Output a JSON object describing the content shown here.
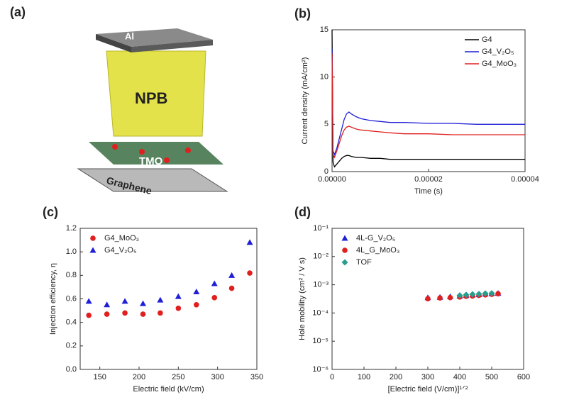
{
  "schematic": {
    "label": "(a)",
    "layers": [
      "Al",
      "NPB",
      "TMO",
      "Graphene"
    ]
  },
  "chart_data": [
    {
      "type": "line",
      "panel_label": "(b)",
      "x_label": "Time (s)",
      "y_label": "Current density (mA/cm²)",
      "x": [
        0,
        2e-07,
        5e-07,
        1e-06,
        1.5e-06,
        2e-06,
        2.5e-06,
        3e-06,
        3.5e-06,
        4e-06,
        5e-06,
        6e-06,
        8e-06,
        1e-05,
        1.2e-05,
        1.5e-05,
        2e-05,
        2.5e-05,
        3e-05,
        3.5e-05,
        4e-05
      ],
      "series": [
        {
          "name": "G4",
          "color": "#000000",
          "values": [
            15,
            1.0,
            0.5,
            0.8,
            1.1,
            1.4,
            1.6,
            1.7,
            1.7,
            1.6,
            1.5,
            1.5,
            1.4,
            1.4,
            1.3,
            1.3,
            1.3,
            1.3,
            1.3,
            1.3,
            1.3
          ]
        },
        {
          "name": "G4_V₂O₅",
          "color": "#1f1fd6",
          "values": [
            13,
            2.2,
            1.8,
            2.5,
            3.5,
            4.5,
            5.5,
            6.1,
            6.3,
            6.1,
            5.8,
            5.6,
            5.4,
            5.3,
            5.2,
            5.2,
            5.1,
            5.1,
            5.0,
            5.0,
            5.0
          ]
        },
        {
          "name": "G4_MoO₃",
          "color": "#e0201f",
          "values": [
            12.5,
            1.8,
            1.5,
            2.2,
            3.0,
            3.8,
            4.4,
            4.7,
            4.8,
            4.7,
            4.5,
            4.4,
            4.3,
            4.2,
            4.1,
            4.0,
            4.0,
            3.9,
            3.9,
            3.9,
            3.9
          ]
        }
      ],
      "xlim": [
        0,
        4e-05
      ],
      "xticks": [
        {
          "value": 0,
          "label": "0.00000"
        },
        {
          "value": 2e-05,
          "label": "0.00002"
        },
        {
          "value": 4e-05,
          "label": "0.00004"
        }
      ],
      "ylim": [
        0,
        15
      ],
      "yticks": [
        0,
        5,
        10,
        15
      ],
      "legend": "upper right"
    },
    {
      "type": "scatter",
      "panel_label": "(c)",
      "x_label": "Electric field (kV/cm)",
      "y_label": "Injection efficiency, η",
      "x": [
        136,
        159,
        182,
        205,
        227,
        250,
        273,
        296,
        318,
        341
      ],
      "series": [
        {
          "name": "G4_MoO₃",
          "color": "#e0201f",
          "marker": "circle",
          "values": [
            0.46,
            0.47,
            0.48,
            0.47,
            0.48,
            0.52,
            0.55,
            0.61,
            0.69,
            0.82
          ]
        },
        {
          "name": "G4_V₂O₅",
          "color": "#1f1fd6",
          "marker": "triangle",
          "values": [
            0.58,
            0.55,
            0.58,
            0.56,
            0.59,
            0.62,
            0.66,
            0.73,
            0.8,
            1.08
          ]
        }
      ],
      "xlim": [
        125,
        350
      ],
      "xticks": [
        150,
        200,
        250,
        300,
        350
      ],
      "ylim": [
        0,
        1.2
      ],
      "yticks": [
        {
          "value": 0,
          "label": "0.0"
        },
        0.2,
        0.4,
        0.6,
        0.8,
        {
          "value": 1,
          "label": "1.0"
        },
        1.2
      ],
      "legend": "upper left"
    },
    {
      "type": "scatter",
      "panel_label": "(d)",
      "x_label": "[Electric field (V/cm)]¹ᐟ²",
      "y_label": "Hole mobility (cm² / V s)",
      "log_y": true,
      "series": [
        {
          "name": "4L-G_V₂O₅",
          "color": "#1f1fd6",
          "marker": "triangle",
          "x": [
            300,
            338,
            370,
            400,
            420,
            440,
            460,
            480,
            500,
            520
          ],
          "values": [
            0.00035,
            0.00036,
            0.00038,
            0.0004,
            0.00042,
            0.00044,
            0.00045,
            0.00047,
            0.00049,
            0.0005
          ]
        },
        {
          "name": "4L_G_MoO₃",
          "color": "#e0201f",
          "marker": "circle",
          "x": [
            300,
            338,
            370,
            400,
            420,
            440,
            460,
            480,
            500,
            520
          ],
          "values": [
            0.00032,
            0.00034,
            0.00035,
            0.00037,
            0.00039,
            0.0004,
            0.00042,
            0.00044,
            0.00046,
            0.00048
          ]
        },
        {
          "name": "TOF",
          "color": "#2a9d8f",
          "marker": "diamond",
          "x": [
            400,
            420,
            440,
            460,
            480,
            500
          ],
          "values": [
            0.00042,
            0.00044,
            0.00046,
            0.00047,
            0.00049,
            0.0005
          ]
        }
      ],
      "xlim": [
        0,
        600
      ],
      "xticks": [
        0,
        100,
        200,
        300,
        400,
        500,
        600
      ],
      "ylim": [
        1e-06,
        0.1
      ],
      "yticks": [
        {
          "value": 1e-06,
          "label": "10⁻⁶"
        },
        {
          "value": 1e-05,
          "label": "10⁻⁵"
        },
        {
          "value": 0.0001,
          "label": "10⁻⁴"
        },
        {
          "value": 0.001,
          "label": "10⁻³"
        },
        {
          "value": 0.01,
          "label": "10⁻²"
        },
        {
          "value": 0.1,
          "label": "10⁻¹"
        }
      ],
      "legend": "upper left"
    }
  ]
}
